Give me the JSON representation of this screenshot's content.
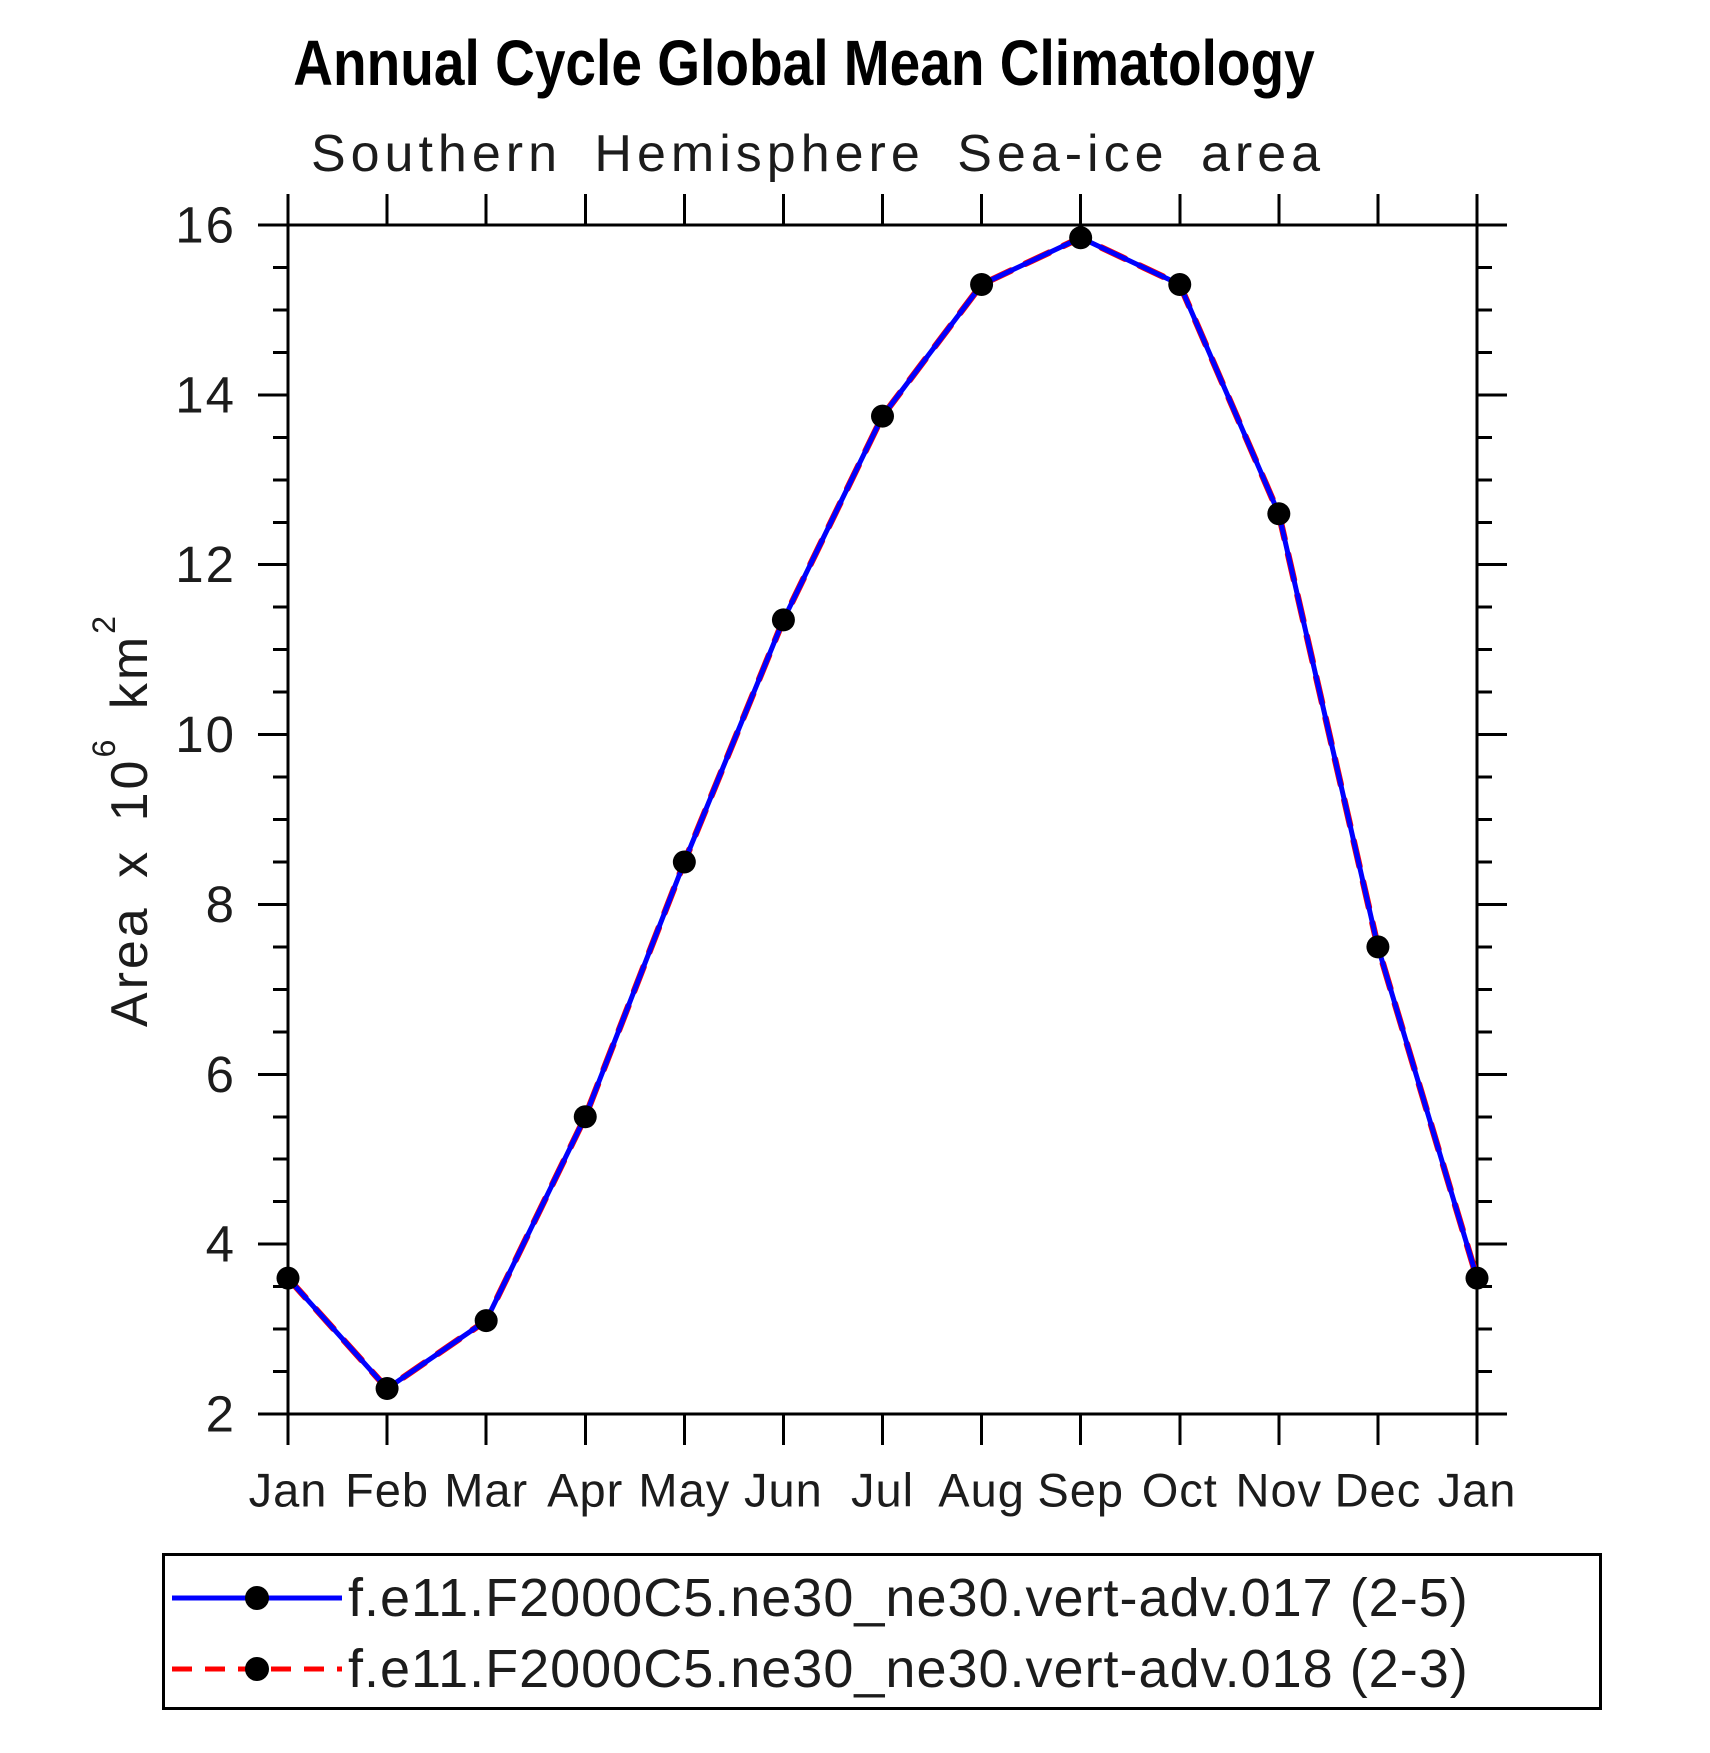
{
  "page": {
    "background": "#ffffff",
    "axis_color": "#000000"
  },
  "title": "Annual Cycle Global Mean Climatology",
  "subtitle": "Southern Hemisphere Sea-ice area",
  "chart_data": {
    "type": "line",
    "title": "Annual Cycle Global Mean Climatology",
    "subtitle": "Southern Hemisphere Sea-ice area",
    "categories": [
      "Jan",
      "Feb",
      "Mar",
      "Apr",
      "May",
      "Jun",
      "Jul",
      "Aug",
      "Sep",
      "Oct",
      "Nov",
      "Dec",
      "Jan"
    ],
    "ylabel": "Area x 10^6 km^2",
    "ylabel_parts": {
      "text1": "Area x 10",
      "sup1": "6",
      "text2": " km",
      "sup2": "2"
    },
    "ylim": [
      2,
      16
    ],
    "y_major_step": 2,
    "y_minor_step": 0.5,
    "y_major_tick_labels": [
      "2",
      "4",
      "6",
      "8",
      "10",
      "12",
      "14",
      "16"
    ],
    "grid": false,
    "legend_position": "bottom",
    "series": [
      {
        "name": "f.e11.F2000C5.ne30_ne30.vert-adv.017 (2-5)",
        "color": "#0000ff",
        "line_style": "solid",
        "marker": "filled-circle",
        "marker_color": "#000000",
        "values": [
          3.6,
          2.3,
          3.1,
          5.5,
          8.5,
          11.35,
          13.75,
          15.3,
          15.85,
          15.3,
          12.6,
          7.5,
          3.6
        ]
      },
      {
        "name": "f.e11.F2000C5.ne30_ne30.vert-adv.018 (2-3)",
        "color": "#ff0000",
        "line_style": "dashed",
        "marker": "filled-circle",
        "marker_color": "#000000",
        "values": [
          3.6,
          2.3,
          3.1,
          5.5,
          8.5,
          11.35,
          13.75,
          15.3,
          15.85,
          15.3,
          12.6,
          7.5,
          3.6
        ],
        "note": "curve coincides with series 1 and is hidden beneath it in the plot area"
      }
    ]
  }
}
